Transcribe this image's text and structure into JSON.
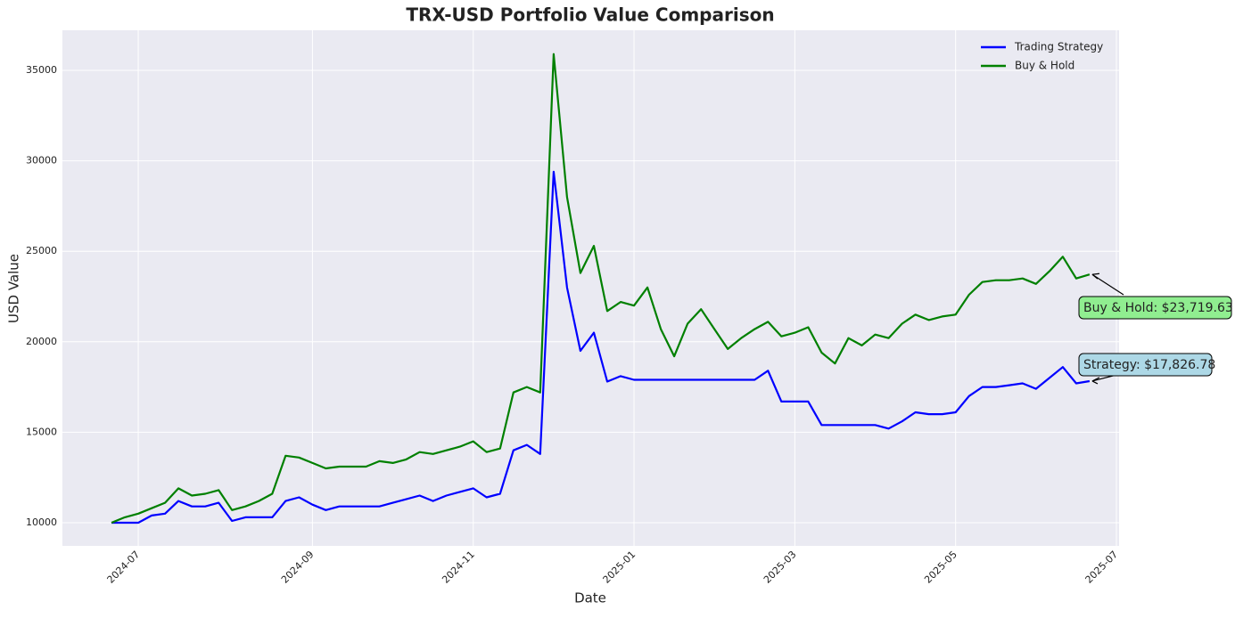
{
  "chart_data": {
    "type": "line",
    "title": "TRX-USD Portfolio Value Comparison",
    "x_label": "Date",
    "y_label": "USD Value",
    "categories": [
      null,
      null,
      "2024-07",
      null,
      null,
      null,
      null,
      null,
      null,
      null,
      null,
      null,
      null,
      null,
      null,
      "2024-09",
      null,
      null,
      null,
      null,
      null,
      null,
      null,
      null,
      null,
      null,
      null,
      "2024-11",
      null,
      null,
      null,
      null,
      null,
      null,
      null,
      null,
      null,
      null,
      null,
      "2025-01",
      null,
      null,
      null,
      null,
      null,
      null,
      null,
      null,
      null,
      null,
      null,
      "2025-03",
      null,
      null,
      null,
      null,
      null,
      null,
      null,
      null,
      null,
      null,
      null,
      "2025-05",
      null,
      null,
      null,
      null,
      null,
      null,
      null,
      null,
      null,
      null,
      null,
      "2025-07"
    ],
    "series": [
      {
        "name": "Trading Strategy",
        "color": "#0000ff",
        "values": [
          10000,
          10000,
          10000,
          10400,
          10500,
          11200,
          10900,
          10900,
          11100,
          10100,
          10300,
          10300,
          10300,
          11200,
          11400,
          11000,
          10700,
          10900,
          10900,
          10900,
          10900,
          11100,
          11300,
          11500,
          11200,
          11500,
          11700,
          11900,
          11400,
          11600,
          14000,
          14300,
          13800,
          29400,
          23000,
          19500,
          20500,
          17800,
          18100,
          17900,
          17900,
          17900,
          17900,
          17900,
          17900,
          17900,
          17900,
          17900,
          17900,
          18400,
          16700,
          16700,
          16700,
          15400,
          15400,
          15400,
          15400,
          15400,
          15200,
          15600,
          16100,
          16000,
          16000,
          16100,
          17000,
          17500,
          17500,
          17600,
          17700,
          17400,
          18000,
          18600,
          17700,
          17826.78,
          null,
          null
        ]
      },
      {
        "name": "Buy & Hold",
        "color": "#008000",
        "values": [
          10000,
          10300,
          10500,
          10800,
          11100,
          11900,
          11500,
          11600,
          11800,
          10700,
          10900,
          11200,
          11600,
          13700,
          13600,
          13300,
          13000,
          13100,
          13100,
          13100,
          13400,
          13300,
          13500,
          13900,
          13800,
          14000,
          14200,
          14500,
          13900,
          14100,
          17200,
          17500,
          17200,
          35900,
          28000,
          23800,
          25300,
          21700,
          22200,
          22000,
          23000,
          20700,
          19200,
          21000,
          21800,
          20700,
          19600,
          20200,
          20700,
          21100,
          20300,
          20500,
          20800,
          19400,
          18800,
          20200,
          19800,
          20400,
          20200,
          21000,
          21500,
          21200,
          21400,
          21500,
          22600,
          23300,
          23400,
          23400,
          23500,
          23200,
          23900,
          24700,
          23500,
          23719.63,
          null,
          null
        ]
      }
    ],
    "ylim": [
      8720,
      37215
    ],
    "yticks": [
      10000,
      15000,
      20000,
      25000,
      30000,
      35000
    ],
    "grid": true,
    "legend": "upper right",
    "annotations": [
      {
        "text": "Buy & Hold: $23,719.63",
        "color": "#90ee90"
      },
      {
        "text": "Strategy: $17,826.78",
        "color": "#add8e6"
      }
    ]
  }
}
